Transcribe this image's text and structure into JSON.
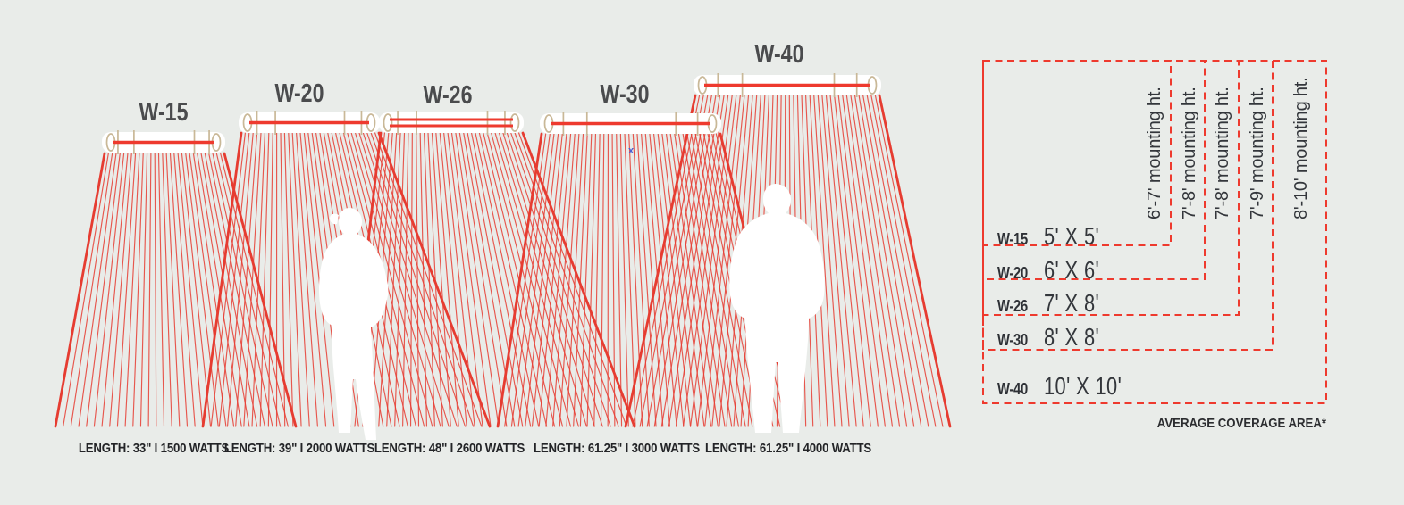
{
  "colors": {
    "background": "#e9ece9",
    "ray_red": "#e63c31",
    "dash_red": "#ee3a2e",
    "fixture_tan": "#c9b897",
    "label_gray": "#4a4b4d",
    "text_dark": "#232427",
    "marker_blue": "#4d5fd0"
  },
  "heaters": [
    {
      "label": "W-15",
      "spec": "LENGTH: 33\" I 1500 WATTS"
    },
    {
      "label": "W-20",
      "spec": "LENGTH: 39\" I 2000 WATTS"
    },
    {
      "label": "W-26",
      "spec": "LENGTH: 48\" I 2600 WATTS"
    },
    {
      "label": "W-30",
      "spec": "LENGTH: 61.25\" I 3000 WATTS"
    },
    {
      "label": "W-40",
      "spec": "LENGTH: 61.25\" I 4000 WATTS"
    }
  ],
  "coverage_table": {
    "rows": [
      {
        "model": "W-15",
        "area": "5' X 5'",
        "mounting": "6'-7' mounting ht."
      },
      {
        "model": "W-20",
        "area": "6' X 6'",
        "mounting": "7'-8' mounting ht."
      },
      {
        "model": "W-26",
        "area": "7' X 8'",
        "mounting": "7'-8' mounting ht."
      },
      {
        "model": "W-30",
        "area": "8' X 8'",
        "mounting": "7'-9' mounting ht."
      },
      {
        "model": "W-40",
        "area": "10' X 10'",
        "mounting": "8'-10' mounting ht."
      }
    ],
    "footnote": "AVERAGE COVERAGE AREA*"
  },
  "stray_marker": "x"
}
